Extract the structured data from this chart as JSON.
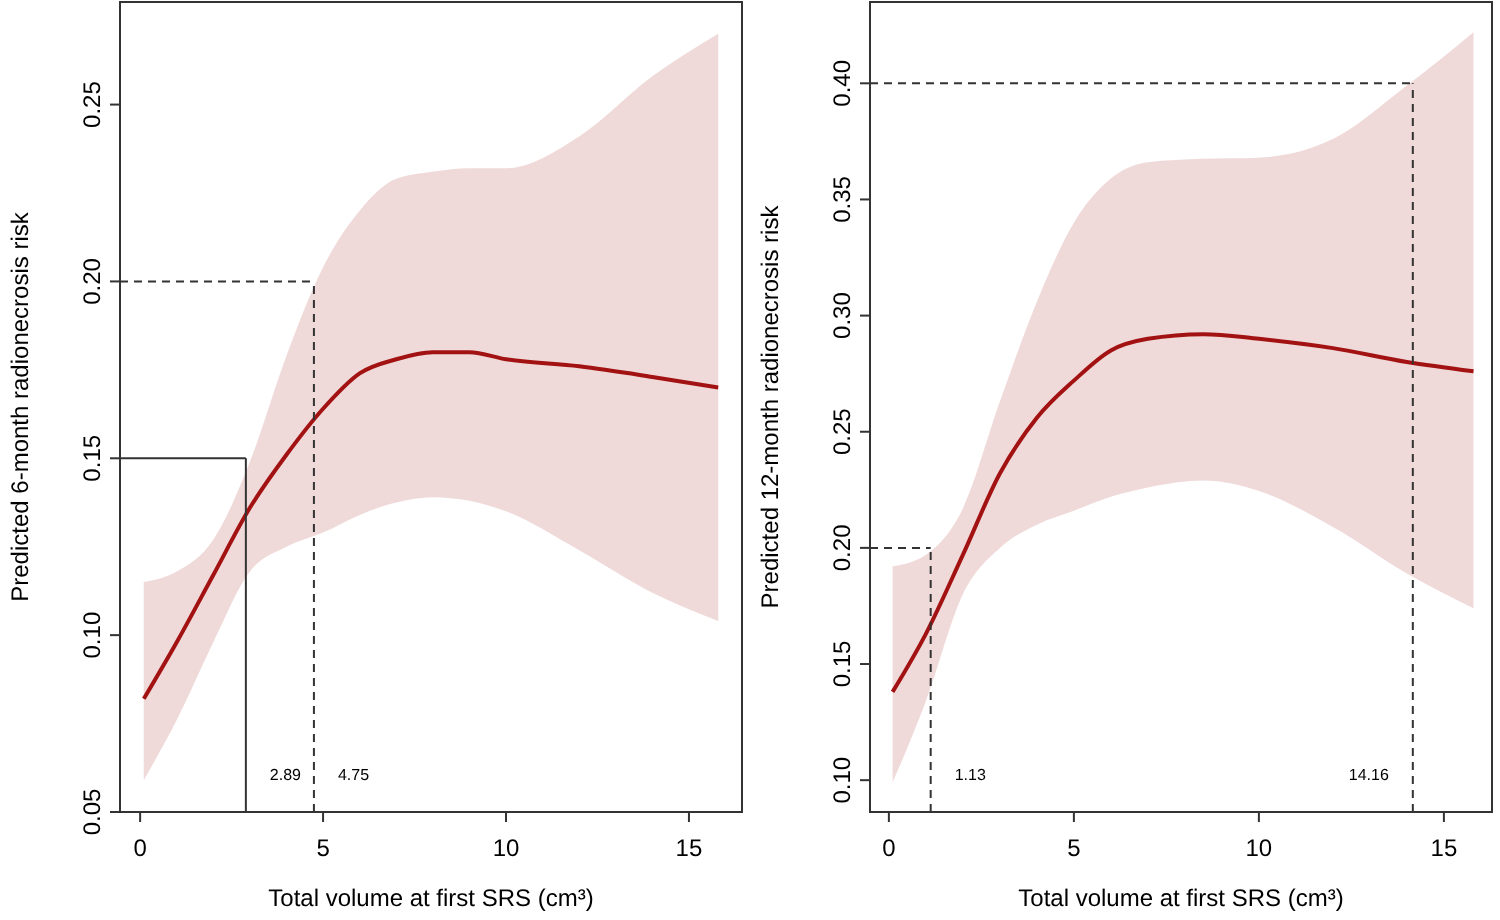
{
  "chart_data": [
    {
      "type": "line",
      "xlabel": "Total volume at first SRS (cm³)",
      "ylabel": "Predicted 6-month radionecrosis risk",
      "xlim": [
        -0.55,
        16.45
      ],
      "ylim": [
        0.05,
        0.279
      ],
      "xticks": [
        0,
        5,
        10,
        15
      ],
      "yticks": [
        {
          "value": 0.05,
          "label": "0.05"
        },
        {
          "value": 0.1,
          "label": "0.10"
        },
        {
          "value": 0.15,
          "label": "0.15"
        },
        {
          "value": 0.2,
          "label": "0.20"
        },
        {
          "value": 0.25,
          "label": "0.25"
        }
      ],
      "grid": false,
      "marker": "none",
      "line_style": "solid",
      "series": [
        {
          "color": "#a31212",
          "x": [
            0.1,
            1,
            2,
            3,
            4,
            5,
            6,
            7,
            8,
            9,
            10,
            12,
            14,
            15.8
          ],
          "values": [
            0.082,
            0.098,
            0.117,
            0.136,
            0.151,
            0.164,
            0.174,
            0.178,
            0.18,
            0.18,
            0.178,
            0.176,
            0.173,
            0.17
          ],
          "lower": [
            0.059,
            0.076,
            0.098,
            0.118,
            0.125,
            0.129,
            0.134,
            0.1375,
            0.139,
            0.138,
            0.135,
            0.124,
            0.112,
            0.104
          ],
          "upper": [
            0.115,
            0.118,
            0.127,
            0.149,
            0.179,
            0.204,
            0.22,
            0.229,
            0.231,
            0.232,
            0.232,
            0.241,
            0.258,
            0.27
          ]
        }
      ],
      "ref_lines": [
        {
          "axis": "y",
          "value": 0.15,
          "line_style": "solid"
        },
        {
          "axis": "x",
          "value": 2.89,
          "label": "2.89",
          "line_style": "solid"
        },
        {
          "axis": "y",
          "value": 0.2,
          "line_style": "dashed"
        },
        {
          "axis": "x",
          "value": 4.75,
          "label": "4.75",
          "line_style": "dashed"
        }
      ]
    },
    {
      "type": "line",
      "xlabel": "Total volume at first SRS (cm³)",
      "ylabel": "Predicted 12-month radionecrosis risk",
      "xlim": [
        -0.51,
        16.3
      ],
      "ylim": [
        0.0863,
        0.435
      ],
      "xticks": [
        0,
        5,
        10,
        15
      ],
      "yticks": [
        {
          "value": 0.1,
          "label": "0.10"
        },
        {
          "value": 0.15,
          "label": "0.15"
        },
        {
          "value": 0.2,
          "label": "0.20"
        },
        {
          "value": 0.25,
          "label": "0.25"
        },
        {
          "value": 0.3,
          "label": "0.30"
        },
        {
          "value": 0.35,
          "label": "0.35"
        },
        {
          "value": 0.4,
          "label": "0.40"
        }
      ],
      "grid": false,
      "marker": "none",
      "line_style": "solid",
      "series": [
        {
          "color": "#a31212",
          "x": [
            0.1,
            1,
            2,
            3,
            4,
            5,
            6,
            7,
            8.5,
            10,
            12,
            14,
            15.8
          ],
          "values": [
            0.138,
            0.163,
            0.197,
            0.232,
            0.256,
            0.272,
            0.285,
            0.29,
            0.292,
            0.29,
            0.286,
            0.28,
            0.276
          ],
          "lower": [
            0.099,
            0.134,
            0.18,
            0.2,
            0.21,
            0.216,
            0.222,
            0.226,
            0.229,
            0.2245,
            0.209,
            0.189,
            0.174
          ],
          "upper": [
            0.192,
            0.197,
            0.217,
            0.263,
            0.306,
            0.34,
            0.359,
            0.366,
            0.3675,
            0.368,
            0.376,
            0.399,
            0.422
          ]
        }
      ],
      "ref_lines": [
        {
          "axis": "y",
          "value": 0.2,
          "line_style": "dashed"
        },
        {
          "axis": "x",
          "value": 1.13,
          "label": "1.13",
          "line_style": "dashed"
        },
        {
          "axis": "y",
          "value": 0.4,
          "line_style": "dashed"
        },
        {
          "axis": "x",
          "value": 14.16,
          "label": "14.16",
          "line_style": "dashed"
        }
      ]
    }
  ]
}
